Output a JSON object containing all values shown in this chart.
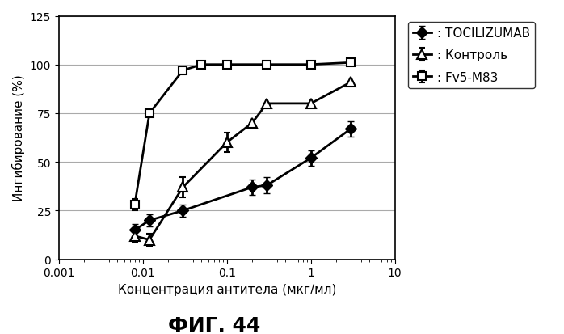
{
  "title": "ФИГ. 44",
  "xlabel": "Концентрация антитела (мкг/мл)",
  "ylabel": "Ингибирование (%)",
  "xlim": [
    0.001,
    10
  ],
  "ylim": [
    0,
    125
  ],
  "yticks": [
    0,
    25,
    50,
    75,
    100,
    125
  ],
  "xticks": [
    0.001,
    0.01,
    0.1,
    1,
    10
  ],
  "xtick_labels": [
    "0.001",
    "0.01",
    "0.1",
    "1",
    "10"
  ],
  "series": {
    "TOCILIZUMAB": {
      "x": [
        0.008,
        0.012,
        0.03,
        0.2,
        0.3,
        1.0,
        3.0
      ],
      "y": [
        15,
        20,
        25,
        37,
        38,
        52,
        67
      ],
      "yerr": [
        3,
        3,
        3,
        4,
        4,
        4,
        4
      ],
      "marker": "D",
      "markersize": 7,
      "fillstyle": "full",
      "linewidth": 2,
      "label": ": TOCILIZUMAB"
    },
    "Контроль": {
      "x": [
        0.008,
        0.012,
        0.03,
        0.1,
        0.2,
        0.3,
        1.0,
        3.0
      ],
      "y": [
        12,
        10,
        37,
        60,
        70,
        80,
        80,
        91
      ],
      "yerr": [
        3,
        3,
        5,
        5,
        0,
        0,
        0,
        0
      ],
      "marker": "^",
      "markersize": 8,
      "fillstyle": "none",
      "linewidth": 2,
      "label": ": Контроль"
    },
    "Fv5-M83": {
      "x": [
        0.008,
        0.012,
        0.03,
        0.05,
        0.1,
        0.3,
        1.0,
        3.0
      ],
      "y": [
        28,
        75,
        97,
        100,
        100,
        100,
        100,
        101
      ],
      "yerr": [
        3,
        0,
        0,
        0,
        0,
        0,
        0,
        0
      ],
      "marker": "s",
      "markersize": 7,
      "fillstyle": "none",
      "linewidth": 2,
      "label": ": Fv5-M83"
    }
  },
  "background_color": "#ffffff",
  "grid_color": "#aaaaaa",
  "legend_fontsize": 11,
  "axis_fontsize": 11,
  "title_fontsize": 18
}
